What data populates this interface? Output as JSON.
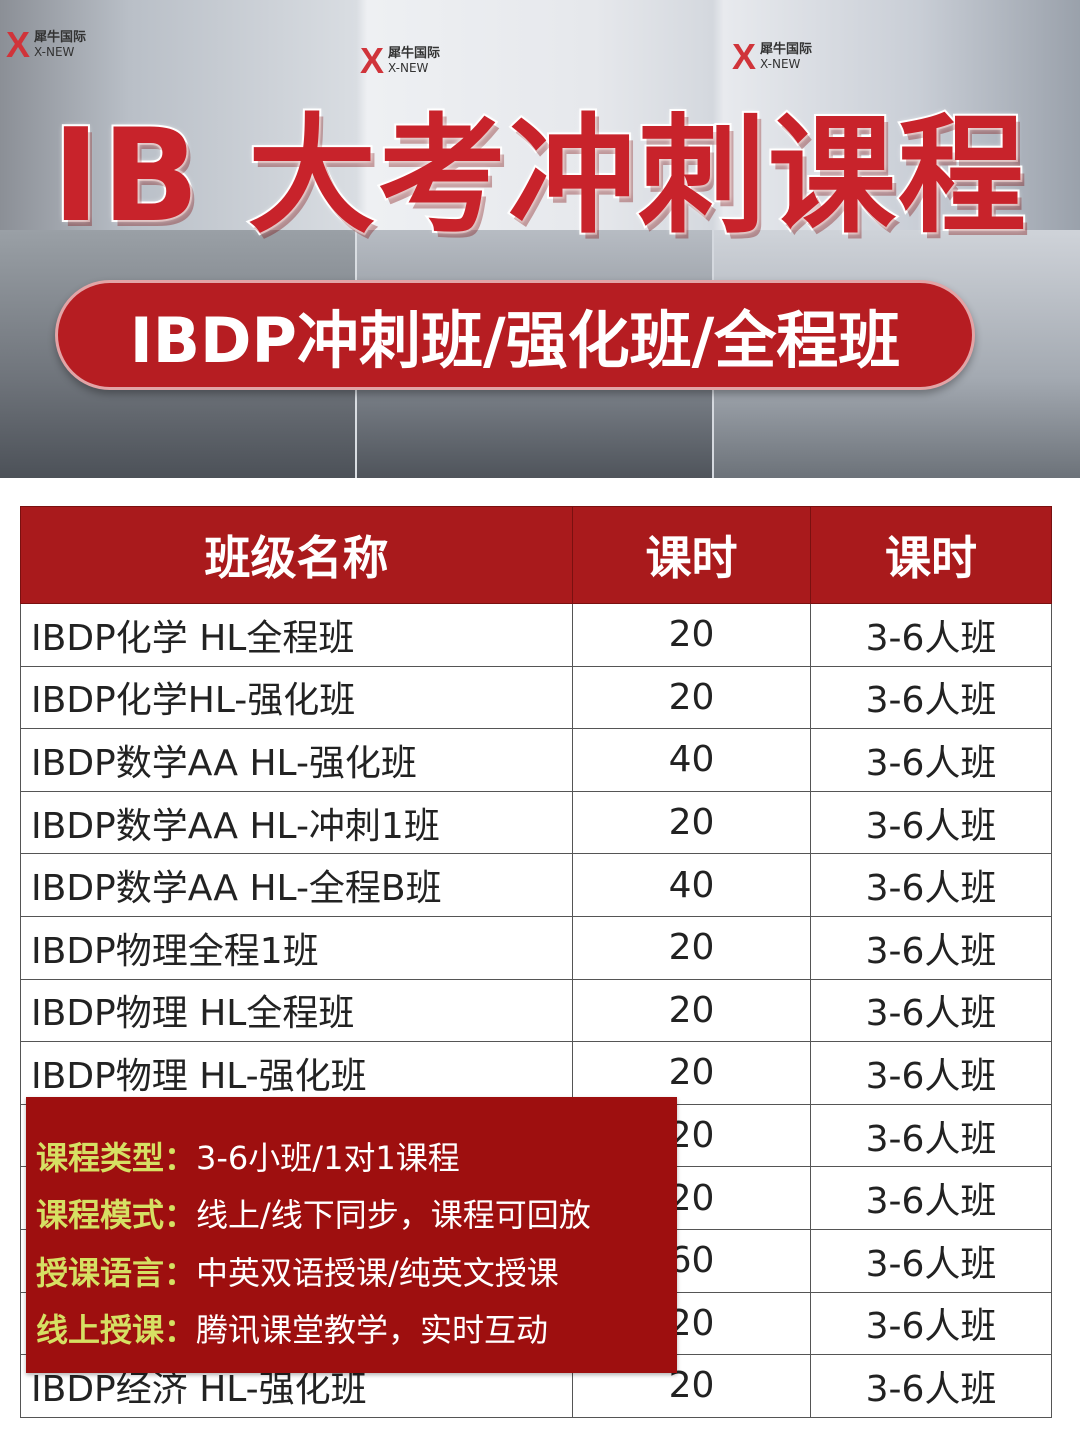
{
  "banner": {
    "title": "IB 大考冲刺课程",
    "subtitle": "IBDP冲刺班/强化班/全程班",
    "logo": {
      "cn": "犀牛国际",
      "en": "X-NEW"
    }
  },
  "table": {
    "headers": [
      "班级名称",
      "课时",
      "课时"
    ],
    "rows": [
      [
        "IBDP化学 HL全程班",
        "20",
        "3-6人班"
      ],
      [
        "IBDP化学HL-强化班",
        "20",
        "3-6人班"
      ],
      [
        "IBDP数学AA HL-强化班",
        "40",
        "3-6人班"
      ],
      [
        "IBDP数学AA HL-冲刺1班",
        "20",
        "3-6人班"
      ],
      [
        "IBDP数学AA HL-全程B班",
        "40",
        "3-6人班"
      ],
      [
        "IBDP物理全程1班",
        "20",
        "3-6人班"
      ],
      [
        "IBDP物理 HL全程班",
        "20",
        "3-6人班"
      ],
      [
        "IBDP物理 HL-强化班",
        "20",
        "3-6人班"
      ],
      [
        "",
        "20",
        "3-6人班"
      ],
      [
        "",
        "20",
        "3-6人班"
      ],
      [
        "",
        "60",
        "3-6人班"
      ],
      [
        "",
        "20",
        "3-6人班"
      ],
      [
        "IBDP经济 HL-强化班",
        "20",
        "3-6人班"
      ]
    ]
  },
  "info": [
    {
      "label": "课程类型：",
      "value": "3-6小班/1对1课程"
    },
    {
      "label": "课程模式：",
      "value": "线上/线下同步，课程可回放"
    },
    {
      "label": "授课语言：",
      "value": "中英双语授课/纯英文授课"
    },
    {
      "label": "线上授课：",
      "value": "腾讯课堂教学，实时互动"
    }
  ],
  "colors": {
    "header_red": "#a91a1c",
    "overlay_red": "#9e0f0f",
    "label_yellow": "#d6e063"
  }
}
